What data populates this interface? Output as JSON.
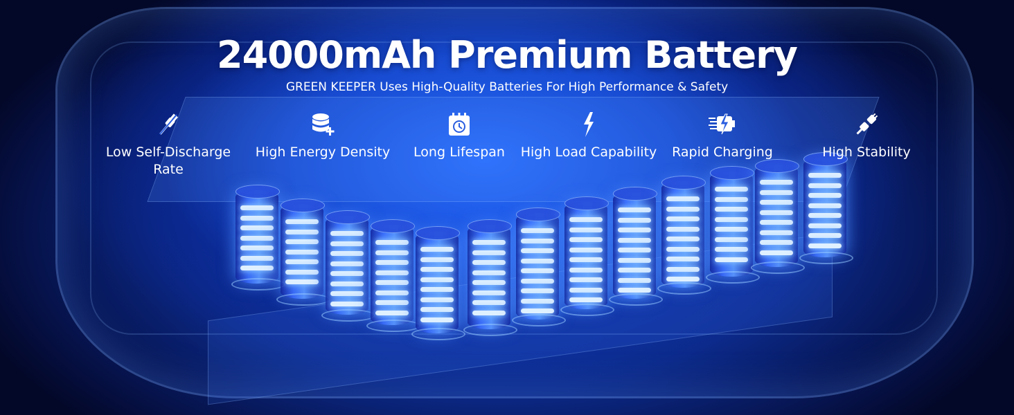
{
  "header": {
    "title": "24000mAh Premium Battery",
    "subtitle": "GREEN KEEPER Uses High-Quality Batteries For High Performance & Safety"
  },
  "features": [
    {
      "icon": "unplug-icon",
      "label": "Low Self-Discharge Rate"
    },
    {
      "icon": "database-plus-icon",
      "label": "High Energy Density"
    },
    {
      "icon": "calendar-clock-icon",
      "label": "Long Lifespan"
    },
    {
      "icon": "lightning-bolt-icon",
      "label": "High Load Capability"
    },
    {
      "icon": "fast-charging-battery-icon",
      "label": "Rapid Charging"
    },
    {
      "icon": "plug-connect-icon",
      "label": "High Stability"
    }
  ],
  "colors": {
    "accent": "#2f6bff",
    "glow": "#dff0ff",
    "background": "#050a2a"
  }
}
